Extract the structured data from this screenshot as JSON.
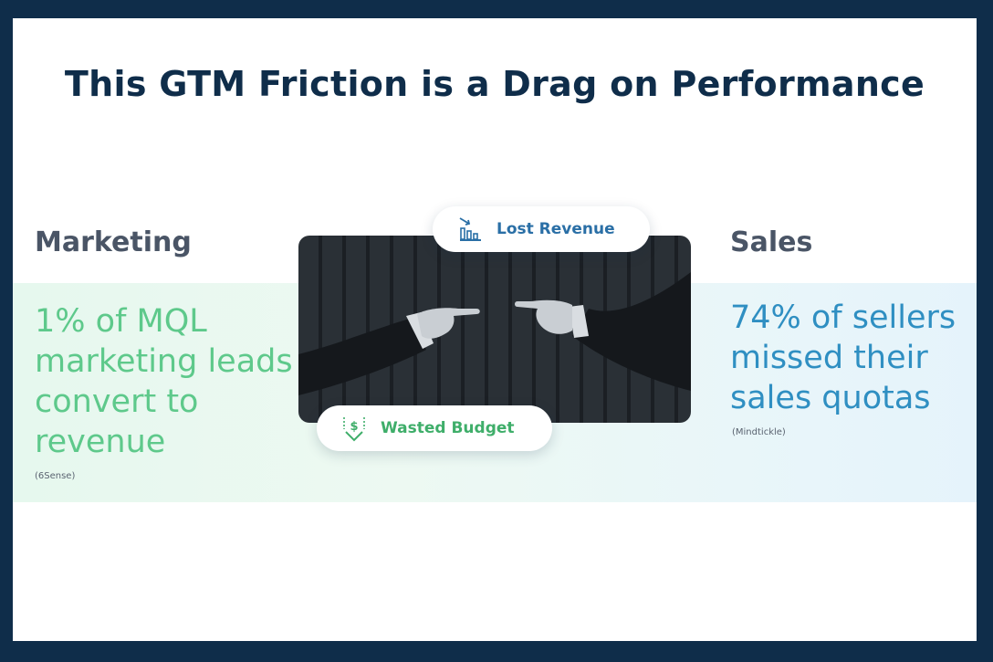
{
  "slide": {
    "title": "This GTM Friction is a Drag on Performance"
  },
  "marketing": {
    "heading": "Marketing",
    "stat": "1% of MQL marketing leads convert to revenue",
    "source": "(6Sense)",
    "color": "#5ec98b"
  },
  "sales": {
    "heading": "Sales",
    "stat": "74% of sellers missed their sales quotas",
    "source": "(Mindtickle)",
    "color": "#2f8fc2"
  },
  "callouts": {
    "lost_revenue": {
      "label": "Lost Revenue",
      "icon": "declining-bar-chart-icon",
      "color": "#2a6fa6"
    },
    "wasted_budget": {
      "label": "Wasted Budget",
      "icon": "dollar-down-arrow-icon",
      "color": "#3fae6a"
    }
  },
  "colors": {
    "frame": "#0f2d4a",
    "title": "#0f2d4a",
    "heading": "#4a5566"
  }
}
